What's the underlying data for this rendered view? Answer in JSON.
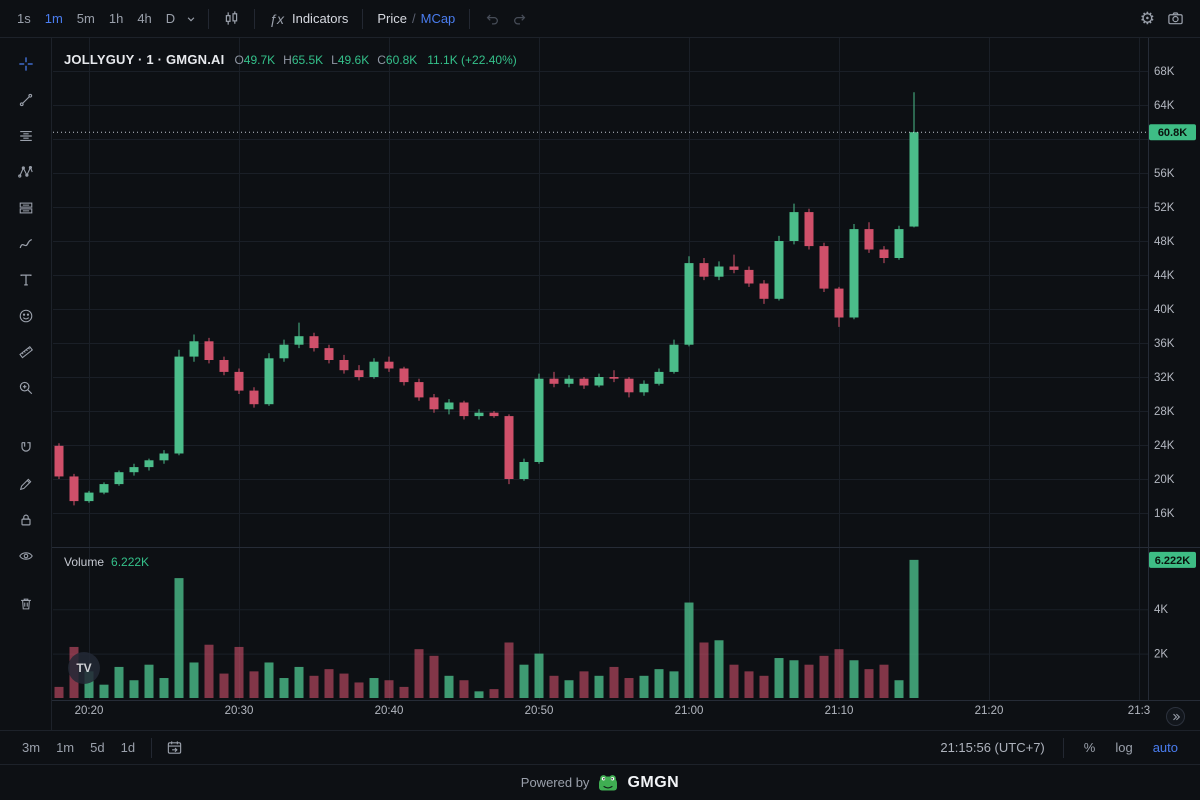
{
  "colors": {
    "up": "#4bbd8a",
    "down": "#d0506a",
    "accent_blue": "#4a7df0",
    "grid": "#1a1f27",
    "axisline": "#262c37",
    "axistext": "#b4b8c1",
    "lastline": "#c3c8d2",
    "badge_bg": "#3ebd85",
    "badge_text": "#0a130e"
  },
  "toolbar_top": {
    "timeframes": [
      {
        "label": "1s",
        "active": false
      },
      {
        "label": "1m",
        "active": true
      },
      {
        "label": "5m",
        "active": false
      },
      {
        "label": "1h",
        "active": false
      },
      {
        "label": "4h",
        "active": false
      },
      {
        "label": "D",
        "active": false
      }
    ],
    "indicators": {
      "fx": "ƒx",
      "label": "Indicators"
    },
    "price_mcap": {
      "price": "Price",
      "sep": "/",
      "mcap": "MCap"
    },
    "icons": [
      "chevron-down",
      "candle-style",
      "undo",
      "redo",
      "gear",
      "camera"
    ]
  },
  "left_toolbar": {
    "tools": [
      "crosshair",
      "trend-line",
      "fib-retracement",
      "xabcd-pattern",
      "long-position",
      "brush",
      "text",
      "emoji",
      "ruler",
      "zoom",
      "magnet",
      "pencil",
      "lock",
      "eye",
      "trash"
    ]
  },
  "chart_header": {
    "title": "JOLLYGUY · 1 · GMGN.AI",
    "ohlc": [
      {
        "k": "O",
        "v": "49.7K"
      },
      {
        "k": "H",
        "v": "65.5K"
      },
      {
        "k": "L",
        "v": "49.6K"
      },
      {
        "k": "C",
        "v": "60.8K"
      }
    ],
    "change": "11.1K (+22.40%)"
  },
  "volume_header": {
    "label": "Volume",
    "value": "6.222K"
  },
  "badges": {
    "price": "60.8K",
    "volume": "6.222K"
  },
  "watermark": {
    "label": "TV"
  },
  "bottom_toolbar": {
    "ranges": [
      "3m",
      "1m",
      "5d",
      "1d"
    ],
    "clock": "21:15:56 (UTC+7)",
    "percent": "%",
    "log": "log",
    "auto": "auto"
  },
  "footer": {
    "powered_by": "Powered by",
    "brand": "GMGN"
  },
  "chart_data": {
    "type": "candlestick",
    "symbol": "JOLLYGUY",
    "interval": "1m",
    "source": "GMGN.AI",
    "price_unit": "K",
    "last_price": 60.8,
    "last_volume": 6.222,
    "price_axis": [
      {
        "value": 68,
        "label": "68K"
      },
      {
        "value": 64,
        "label": "64K"
      },
      {
        "value": 60,
        "label": ""
      },
      {
        "value": 56,
        "label": "56K"
      },
      {
        "value": 52,
        "label": "52K"
      },
      {
        "value": 48,
        "label": "48K"
      },
      {
        "value": 44,
        "label": "44K"
      },
      {
        "value": 40,
        "label": "40K"
      },
      {
        "value": 36,
        "label": "36K"
      },
      {
        "value": 32,
        "label": "32K"
      },
      {
        "value": 28,
        "label": "28K"
      },
      {
        "value": 24,
        "label": "24K"
      },
      {
        "value": 20,
        "label": "20K"
      },
      {
        "value": 16,
        "label": "16K"
      }
    ],
    "volume_axis": [
      {
        "value": 4,
        "label": "4K"
      },
      {
        "value": 2,
        "label": "2K"
      }
    ],
    "time_axis": [
      {
        "min": 2,
        "label": "20:20"
      },
      {
        "min": 12,
        "label": "20:30"
      },
      {
        "min": 22,
        "label": "20:40"
      },
      {
        "min": 32,
        "label": "20:50"
      },
      {
        "min": 42,
        "label": "21:00"
      },
      {
        "min": 52,
        "label": "21:10"
      },
      {
        "min": 62,
        "label": "21:20"
      },
      {
        "min": 72,
        "label": "21:3"
      }
    ],
    "candles": [
      [
        "20:18",
        23.9,
        24.2,
        20.0,
        20.3,
        0.5
      ],
      [
        "20:19",
        20.3,
        20.6,
        16.9,
        17.4,
        2.3
      ],
      [
        "20:20",
        17.4,
        18.6,
        17.2,
        18.4,
        1.2
      ],
      [
        "20:21",
        18.4,
        19.6,
        18.2,
        19.4,
        0.6
      ],
      [
        "20:22",
        19.4,
        21.0,
        19.2,
        20.8,
        1.4
      ],
      [
        "20:23",
        20.8,
        21.8,
        20.4,
        21.4,
        0.8
      ],
      [
        "20:24",
        21.4,
        22.4,
        21.0,
        22.2,
        1.5
      ],
      [
        "20:25",
        22.2,
        23.4,
        21.8,
        23.0,
        0.9
      ],
      [
        "20:26",
        23.0,
        35.2,
        22.8,
        34.4,
        5.4
      ],
      [
        "20:27",
        34.4,
        37.0,
        33.8,
        36.2,
        1.6
      ],
      [
        "20:28",
        36.2,
        36.6,
        33.6,
        34.0,
        2.4
      ],
      [
        "20:29",
        34.0,
        34.4,
        32.2,
        32.6,
        1.1
      ],
      [
        "20:30",
        32.6,
        33.0,
        30.0,
        30.4,
        2.3
      ],
      [
        "20:31",
        30.4,
        30.8,
        28.4,
        28.8,
        1.2
      ],
      [
        "20:32",
        28.8,
        34.8,
        28.6,
        34.2,
        1.6
      ],
      [
        "20:33",
        34.2,
        36.4,
        33.8,
        35.8,
        0.9
      ],
      [
        "20:34",
        35.8,
        38.4,
        35.4,
        36.8,
        1.4
      ],
      [
        "20:35",
        36.8,
        37.2,
        35.0,
        35.4,
        1.0
      ],
      [
        "20:36",
        35.4,
        35.8,
        33.6,
        34.0,
        1.3
      ],
      [
        "20:37",
        34.0,
        34.6,
        32.4,
        32.8,
        1.1
      ],
      [
        "20:38",
        32.8,
        33.4,
        31.6,
        32.0,
        0.7
      ],
      [
        "20:39",
        32.0,
        34.2,
        31.8,
        33.8,
        0.9
      ],
      [
        "20:40",
        33.8,
        34.4,
        32.6,
        33.0,
        0.8
      ],
      [
        "20:41",
        33.0,
        33.2,
        31.0,
        31.4,
        0.5
      ],
      [
        "20:42",
        31.4,
        31.8,
        29.2,
        29.6,
        2.2
      ],
      [
        "20:43",
        29.6,
        30.0,
        27.8,
        28.2,
        1.9
      ],
      [
        "20:44",
        28.2,
        29.4,
        27.6,
        29.0,
        1.0
      ],
      [
        "20:45",
        29.0,
        29.2,
        27.0,
        27.4,
        0.8
      ],
      [
        "20:46",
        27.4,
        28.2,
        27.0,
        27.8,
        0.3
      ],
      [
        "20:47",
        27.8,
        28.0,
        27.2,
        27.4,
        0.4
      ],
      [
        "20:48",
        27.4,
        27.6,
        19.4,
        20.0,
        2.5
      ],
      [
        "20:49",
        20.0,
        22.4,
        19.8,
        22.0,
        1.5
      ],
      [
        "20:50",
        22.0,
        32.4,
        21.8,
        31.8,
        2.0
      ],
      [
        "20:51",
        31.8,
        32.6,
        30.8,
        31.2,
        1.0
      ],
      [
        "20:52",
        31.2,
        32.2,
        30.8,
        31.8,
        0.8
      ],
      [
        "20:53",
        31.8,
        32.0,
        30.6,
        31.0,
        1.2
      ],
      [
        "20:54",
        31.0,
        32.4,
        30.8,
        32.0,
        1.0
      ],
      [
        "20:55",
        32.0,
        32.8,
        31.4,
        31.8,
        1.4
      ],
      [
        "20:56",
        31.8,
        32.0,
        29.6,
        30.2,
        0.9
      ],
      [
        "20:57",
        30.2,
        31.6,
        29.8,
        31.2,
        1.0
      ],
      [
        "20:58",
        31.2,
        33.0,
        31.0,
        32.6,
        1.3
      ],
      [
        "20:59",
        32.6,
        36.4,
        32.4,
        35.8,
        1.2
      ],
      [
        "21:00",
        35.8,
        46.2,
        35.6,
        45.4,
        4.3
      ],
      [
        "21:01",
        45.4,
        46.0,
        43.4,
        43.8,
        2.5
      ],
      [
        "21:02",
        43.8,
        45.6,
        43.4,
        45.0,
        2.6
      ],
      [
        "21:03",
        45.0,
        46.4,
        44.2,
        44.6,
        1.5
      ],
      [
        "21:04",
        44.6,
        45.0,
        42.6,
        43.0,
        1.2
      ],
      [
        "21:05",
        43.0,
        43.4,
        40.6,
        41.2,
        1.0
      ],
      [
        "21:06",
        41.2,
        48.6,
        41.0,
        48.0,
        1.8
      ],
      [
        "21:07",
        48.0,
        52.4,
        47.6,
        51.4,
        1.7
      ],
      [
        "21:08",
        51.4,
        51.8,
        47.0,
        47.4,
        1.5
      ],
      [
        "21:09",
        47.4,
        47.8,
        42.0,
        42.4,
        1.9
      ],
      [
        "21:10",
        42.4,
        42.6,
        37.9,
        39.0,
        2.2
      ],
      [
        "21:11",
        39.0,
        50.0,
        38.8,
        49.4,
        1.7
      ],
      [
        "21:12",
        49.4,
        50.2,
        46.6,
        47.0,
        1.3
      ],
      [
        "21:13",
        47.0,
        47.4,
        45.4,
        46.0,
        1.5
      ],
      [
        "21:14",
        46.0,
        49.8,
        45.8,
        49.4,
        0.8
      ],
      [
        "21:15",
        49.7,
        65.5,
        49.6,
        60.8,
        6.222
      ]
    ]
  }
}
